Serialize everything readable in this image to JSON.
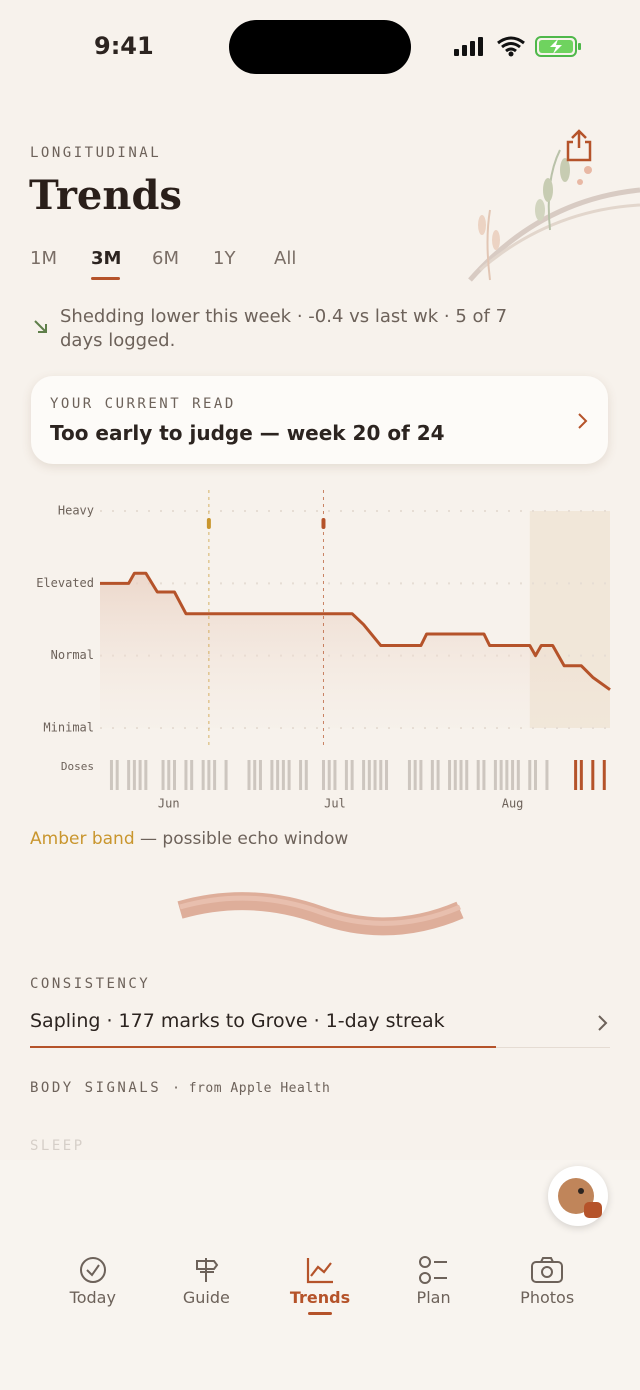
{
  "status": {
    "time": "9:41"
  },
  "header": {
    "eyebrow": "LONGITUDINAL",
    "title": "Trends"
  },
  "ranges": {
    "options": [
      "1M",
      "3M",
      "6M",
      "1Y",
      "All"
    ],
    "selected": 1
  },
  "summary": "Shedding lower this week · -0.4 vs last wk · 5 of 7 days logged.",
  "current_read": {
    "label": "YOUR CURRENT READ",
    "text": "Too early to judge — week 20 of 24"
  },
  "chart_data": {
    "type": "line",
    "x": [
      0,
      5,
      6,
      8,
      10,
      13,
      15,
      44,
      46,
      49,
      56,
      57,
      67,
      68,
      75,
      76,
      77,
      79,
      81,
      84,
      86,
      89
    ],
    "series": [
      {
        "color": "#b5532a",
        "values": [
          2.0,
          2.0,
          2.14,
          2.14,
          1.88,
          1.88,
          1.58,
          1.58,
          1.43,
          1.14,
          1.14,
          1.3,
          1.3,
          1.14,
          1.14,
          1.0,
          1.14,
          1.14,
          0.86,
          0.86,
          0.7,
          0.53
        ]
      }
    ],
    "xlim": [
      0,
      89
    ],
    "xticks": [
      {
        "value": 12,
        "label": "Jun"
      },
      {
        "value": 41,
        "label": "Jul"
      },
      {
        "value": 72,
        "label": "Aug"
      }
    ],
    "ylim": [
      0,
      3
    ],
    "yticks": [
      {
        "value": 0,
        "label": "Minimal"
      },
      {
        "value": 1,
        "label": "Normal"
      },
      {
        "value": 2,
        "label": "Elevated"
      },
      {
        "value": 3,
        "label": "Heavy"
      }
    ],
    "grid": true,
    "markers": [
      {
        "x": 19,
        "color": "#c9962e"
      },
      {
        "x": 39,
        "color": "#b5532a"
      }
    ],
    "band": {
      "start": 75,
      "end": 89,
      "color": "#efe4d4"
    },
    "doses": {
      "label": "Doses",
      "color": "#cdc6bf",
      "days": [
        2,
        3,
        5,
        6,
        7,
        8,
        11,
        12,
        13,
        15,
        16,
        18,
        19,
        20,
        22,
        26,
        27,
        28,
        30,
        31,
        32,
        33,
        35,
        36,
        39,
        40,
        41,
        43,
        44,
        46,
        47,
        48,
        49,
        50,
        54,
        55,
        56,
        58,
        59,
        61,
        62,
        63,
        64,
        66,
        67,
        69,
        70,
        71,
        72,
        73,
        75,
        76,
        78
      ],
      "recent_color": "#b5532a",
      "recent_days": [
        83,
        84,
        86,
        88
      ]
    }
  },
  "legend_note": {
    "highlight": "Amber band",
    "text": "— possible echo window"
  },
  "consistency": {
    "label": "CONSISTENCY",
    "text": "Sapling · 177 marks to Grove · 1-day streak"
  },
  "body_signals": {
    "label": "BODY SIGNALS",
    "source": "· from Apple Health",
    "next": "SLEEP"
  },
  "nav": {
    "items": [
      "Today",
      "Guide",
      "Trends",
      "Plan",
      "Photos"
    ],
    "active": 2
  }
}
